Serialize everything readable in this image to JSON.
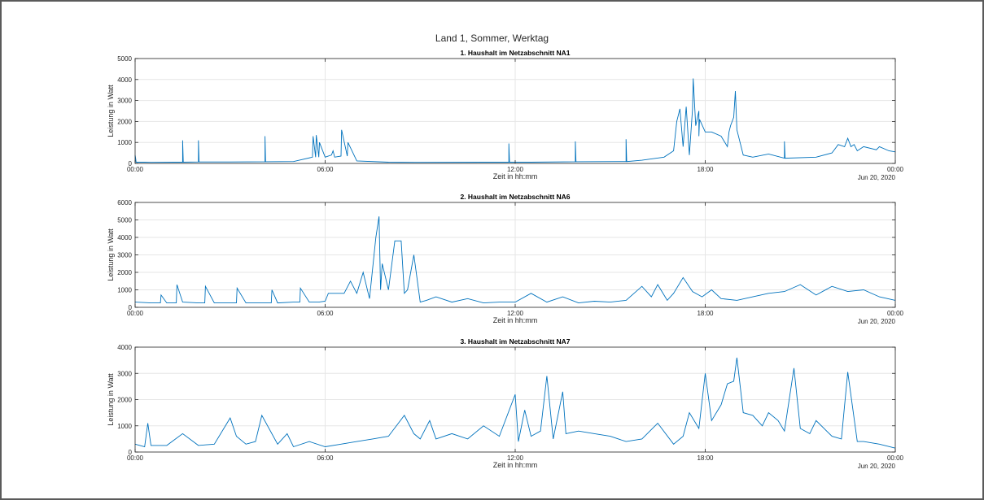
{
  "figure": {
    "suptitle": "Land 1, Sommer, Werktag"
  },
  "colors": {
    "series": "#0072BD",
    "grid": "#e6e6e6",
    "axes": "#262626",
    "frame": "#5a5a5a"
  },
  "chart_data": [
    {
      "type": "line",
      "title": "1. Haushalt im Netzabschnitt NA1",
      "xlabel": "Zeit in hh:mm",
      "ylabel": "Leistung in Watt",
      "xticks": [
        "00:00",
        "06:00",
        "12:00",
        "18:00",
        "00:00"
      ],
      "xdate_label": "Jun 20, 2020",
      "ylim": [
        0,
        5000
      ],
      "yticks": [
        0,
        1000,
        2000,
        3000,
        4000,
        5000
      ],
      "xlim_hours": [
        0,
        24
      ],
      "grid": true,
      "series": [
        {
          "x": [
            0,
            0.02,
            0.03,
            0.3,
            0.5,
            1.2,
            1.5,
            1.5,
            1.52,
            2.0,
            2.0,
            2.02,
            3.0,
            4.1,
            4.1,
            4.12,
            5.0,
            5.6,
            5.62,
            5.7,
            5.72,
            5.8,
            5.82,
            6.0,
            6.2,
            6.25,
            6.3,
            6.5,
            6.52,
            6.7,
            6.72,
            7.0,
            8.0,
            9.0,
            11.0,
            11.8,
            11.8,
            11.82,
            12.5,
            13.9,
            13.9,
            13.92,
            15.5,
            15.5,
            15.52,
            16.0,
            16.7,
            17.0,
            17.1,
            17.2,
            17.3,
            17.4,
            17.5,
            17.6,
            17.62,
            17.7,
            17.8,
            17.8,
            17.82,
            18.0,
            18.2,
            18.5,
            18.7,
            18.75,
            18.8,
            18.9,
            18.95,
            19.0,
            19.2,
            19.5,
            20.0,
            20.5,
            20.5,
            20.52,
            21.5,
            22.0,
            22.2,
            22.4,
            22.5,
            22.6,
            22.7,
            22.8,
            23.0,
            23.4,
            23.5,
            23.8,
            24.0
          ],
          "y": [
            400,
            200,
            60,
            60,
            50,
            60,
            60,
            1100,
            60,
            70,
            1100,
            70,
            70,
            80,
            1300,
            80,
            90,
            300,
            1300,
            300,
            1350,
            300,
            1000,
            300,
            400,
            600,
            300,
            350,
            1600,
            350,
            1000,
            120,
            60,
            50,
            60,
            60,
            950,
            60,
            60,
            80,
            1050,
            80,
            90,
            1150,
            90,
            150,
            300,
            600,
            2000,
            2600,
            800,
            2700,
            400,
            2600,
            4050,
            1800,
            2500,
            1300,
            2100,
            1500,
            1500,
            1300,
            800,
            1500,
            1800,
            2200,
            3450,
            1600,
            400,
            300,
            450,
            250,
            1050,
            250,
            300,
            500,
            900,
            800,
            1200,
            800,
            900,
            600,
            800,
            650,
            800,
            600,
            550
          ]
        }
      ]
    },
    {
      "type": "line",
      "title": "2. Haushalt im Netzabschnitt NA6",
      "xlabel": "Zeit in hh:mm",
      "ylabel": "Leistung in Watt",
      "xticks": [
        "00:00",
        "06:00",
        "12:00",
        "18:00",
        "00:00"
      ],
      "xdate_label": "Jun 20, 2020",
      "ylim": [
        0,
        6000
      ],
      "yticks": [
        0,
        1000,
        2000,
        3000,
        4000,
        5000,
        6000
      ],
      "xlim_hours": [
        0,
        24
      ],
      "grid": true,
      "series": [
        {
          "x": [
            0,
            0.5,
            0.8,
            0.82,
            1.0,
            1.3,
            1.32,
            1.5,
            2.0,
            2.2,
            2.22,
            2.5,
            3.0,
            3.2,
            3.22,
            3.5,
            4.0,
            4.3,
            4.32,
            4.5,
            5.0,
            5.2,
            5.22,
            5.5,
            5.8,
            6.0,
            6.1,
            6.6,
            6.8,
            7.0,
            7.2,
            7.4,
            7.6,
            7.7,
            7.75,
            7.8,
            8.0,
            8.2,
            8.4,
            8.5,
            8.6,
            8.8,
            9.0,
            9.2,
            9.5,
            10.0,
            10.5,
            11.0,
            11.5,
            12.0,
            12.5,
            13.0,
            13.5,
            14.0,
            14.5,
            15.0,
            15.5,
            16.0,
            16.3,
            16.5,
            16.8,
            17.0,
            17.3,
            17.6,
            17.9,
            18.2,
            18.5,
            19.0,
            19.5,
            20.0,
            20.5,
            21.0,
            21.5,
            22.0,
            22.5,
            23.0,
            23.5,
            24.0
          ],
          "y": [
            300,
            250,
            250,
            700,
            250,
            250,
            1300,
            300,
            250,
            250,
            1200,
            250,
            250,
            250,
            1100,
            250,
            250,
            250,
            1000,
            250,
            300,
            300,
            1100,
            300,
            300,
            350,
            800,
            800,
            1500,
            800,
            2000,
            500,
            4000,
            5200,
            1000,
            2500,
            1000,
            3800,
            3800,
            800,
            1000,
            3000,
            300,
            400,
            600,
            300,
            500,
            250,
            300,
            300,
            800,
            300,
            600,
            250,
            350,
            300,
            400,
            1200,
            600,
            1300,
            400,
            800,
            1700,
            900,
            600,
            1000,
            500,
            400,
            600,
            800,
            900,
            1300,
            700,
            1200,
            900,
            1000,
            600,
            400
          ]
        }
      ]
    },
    {
      "type": "line",
      "title": "3. Haushalt im Netzabschnitt NA7",
      "xlabel": "Zeit in hh:mm",
      "ylabel": "Leistung in Watt",
      "xticks": [
        "00:00",
        "06:00",
        "12:00",
        "18:00",
        "00:00"
      ],
      "xdate_label": "Jun 20, 2020",
      "ylim": [
        0,
        4000
      ],
      "yticks": [
        0,
        1000,
        2000,
        3000,
        4000
      ],
      "xlim_hours": [
        0,
        24
      ],
      "grid": true,
      "series": [
        {
          "x": [
            0,
            0.3,
            0.4,
            0.5,
            1.0,
            1.5,
            2.0,
            2.5,
            3.0,
            3.2,
            3.5,
            3.8,
            4.0,
            4.5,
            4.8,
            5.0,
            5.5,
            6.0,
            6.5,
            7.0,
            7.5,
            8.0,
            8.5,
            8.8,
            9.0,
            9.3,
            9.5,
            10.0,
            10.5,
            11.0,
            11.5,
            12.0,
            12.1,
            12.3,
            12.5,
            12.8,
            13.0,
            13.2,
            13.5,
            13.6,
            14.0,
            14.5,
            15.0,
            15.5,
            16.0,
            16.5,
            17.0,
            17.3,
            17.5,
            17.8,
            18.0,
            18.2,
            18.5,
            18.7,
            18.9,
            19.0,
            19.2,
            19.5,
            19.8,
            20.0,
            20.3,
            20.5,
            20.8,
            21.0,
            21.3,
            21.5,
            22.0,
            22.3,
            22.5,
            22.8,
            23.0,
            23.5,
            24.0
          ],
          "y": [
            300,
            200,
            1100,
            250,
            250,
            700,
            250,
            300,
            1300,
            600,
            300,
            400,
            1400,
            300,
            700,
            200,
            400,
            200,
            300,
            400,
            500,
            600,
            1400,
            700,
            500,
            1200,
            500,
            700,
            500,
            1000,
            600,
            2200,
            400,
            1600,
            600,
            800,
            2900,
            500,
            2300,
            700,
            800,
            700,
            600,
            400,
            500,
            1100,
            300,
            600,
            1500,
            900,
            3000,
            1200,
            1800,
            2600,
            2700,
            3600,
            1500,
            1400,
            1000,
            1500,
            1200,
            800,
            3200,
            900,
            700,
            1200,
            600,
            500,
            3050,
            400,
            400,
            300,
            150
          ]
        }
      ]
    }
  ]
}
